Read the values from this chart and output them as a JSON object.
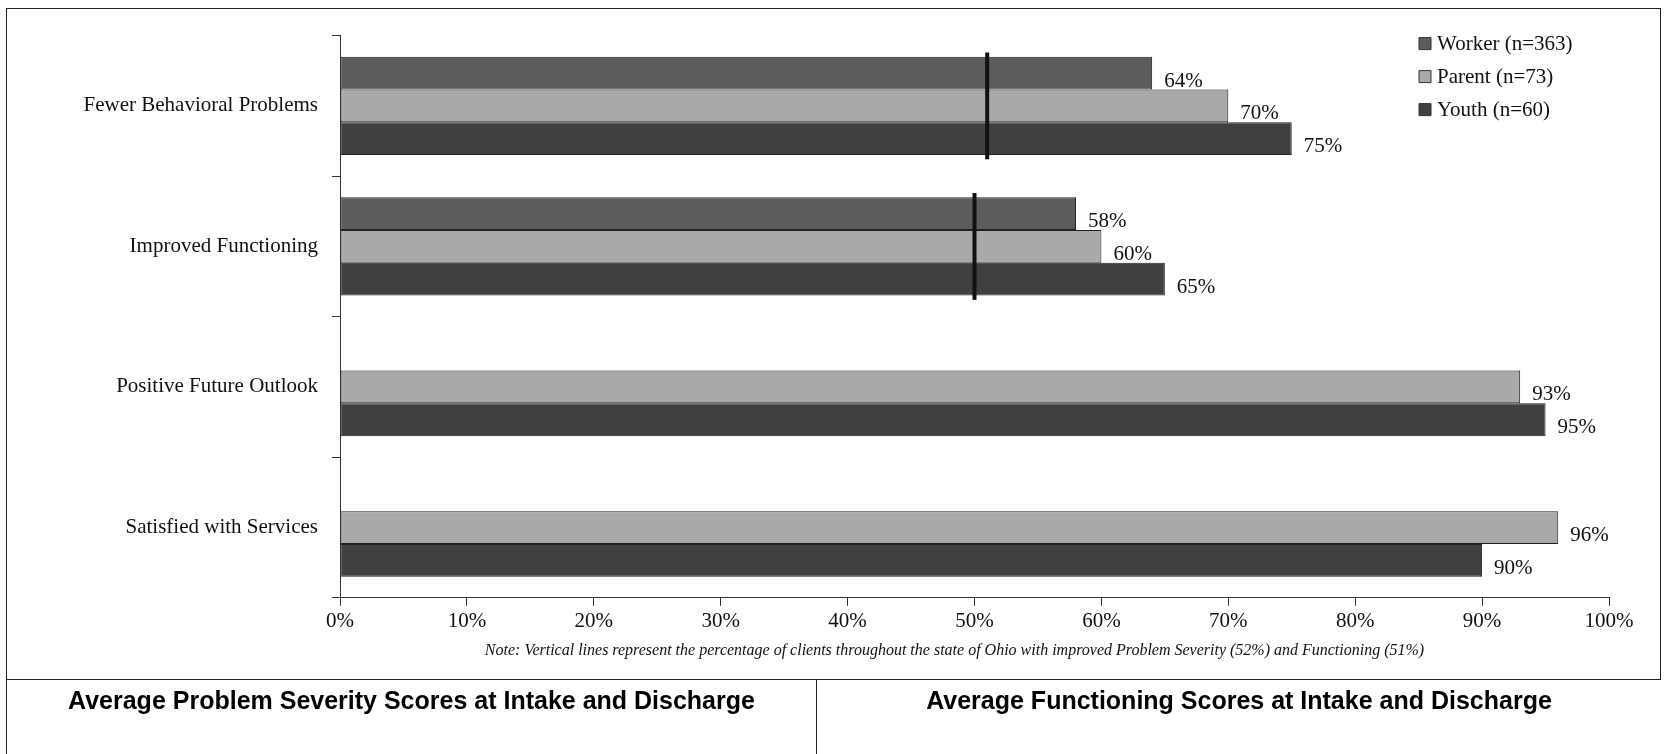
{
  "chart_data": {
    "type": "bar",
    "orientation": "horizontal",
    "categories": [
      "Fewer Behavioral Problems",
      "Improved Functioning",
      "Positive Future Outlook",
      "Satisfied with Services"
    ],
    "series": [
      {
        "name": "Worker (n=363)",
        "color": "#5c5c5c",
        "values": [
          64,
          58,
          null,
          null
        ]
      },
      {
        "name": "Parent (n=73)",
        "color": "#a9a9a9",
        "values": [
          70,
          60,
          93,
          96
        ]
      },
      {
        "name": "Youth (n=60)",
        "color": "#404040",
        "values": [
          75,
          65,
          95,
          90
        ]
      }
    ],
    "xlim": [
      0,
      100
    ],
    "xticks": [
      {
        "value": 0,
        "label": "0%"
      },
      {
        "value": 10,
        "label": "10%"
      },
      {
        "value": 20,
        "label": "20%"
      },
      {
        "value": 30,
        "label": "30%"
      },
      {
        "value": 40,
        "label": "40%"
      },
      {
        "value": 50,
        "label": "50%"
      },
      {
        "value": 60,
        "label": "60%"
      },
      {
        "value": 70,
        "label": "70%"
      },
      {
        "value": 80,
        "label": "80%"
      },
      {
        "value": 90,
        "label": "90%"
      },
      {
        "value": 100,
        "label": "100%"
      }
    ],
    "value_labels": [
      [
        "64%",
        "58%",
        null,
        null
      ],
      [
        "70%",
        "60%",
        "93%",
        "96%"
      ],
      [
        "75%",
        "65%",
        "95%",
        "90%"
      ]
    ],
    "ref_lines": [
      {
        "axis": "x",
        "value": 51,
        "color": "#111111"
      },
      {
        "axis": "x",
        "value": 50,
        "color": "#111111"
      }
    ],
    "legend": "top right",
    "annotations": [
      "Note: Vertical lines represent the percentage of clients throughout the state of Ohio with improved Problem Severity (52%) and Functioning (51%)",
      "Average Problem Severity Scores at Intake and Discharge",
      "Average Functioning Scores at Intake and Discharge"
    ]
  }
}
